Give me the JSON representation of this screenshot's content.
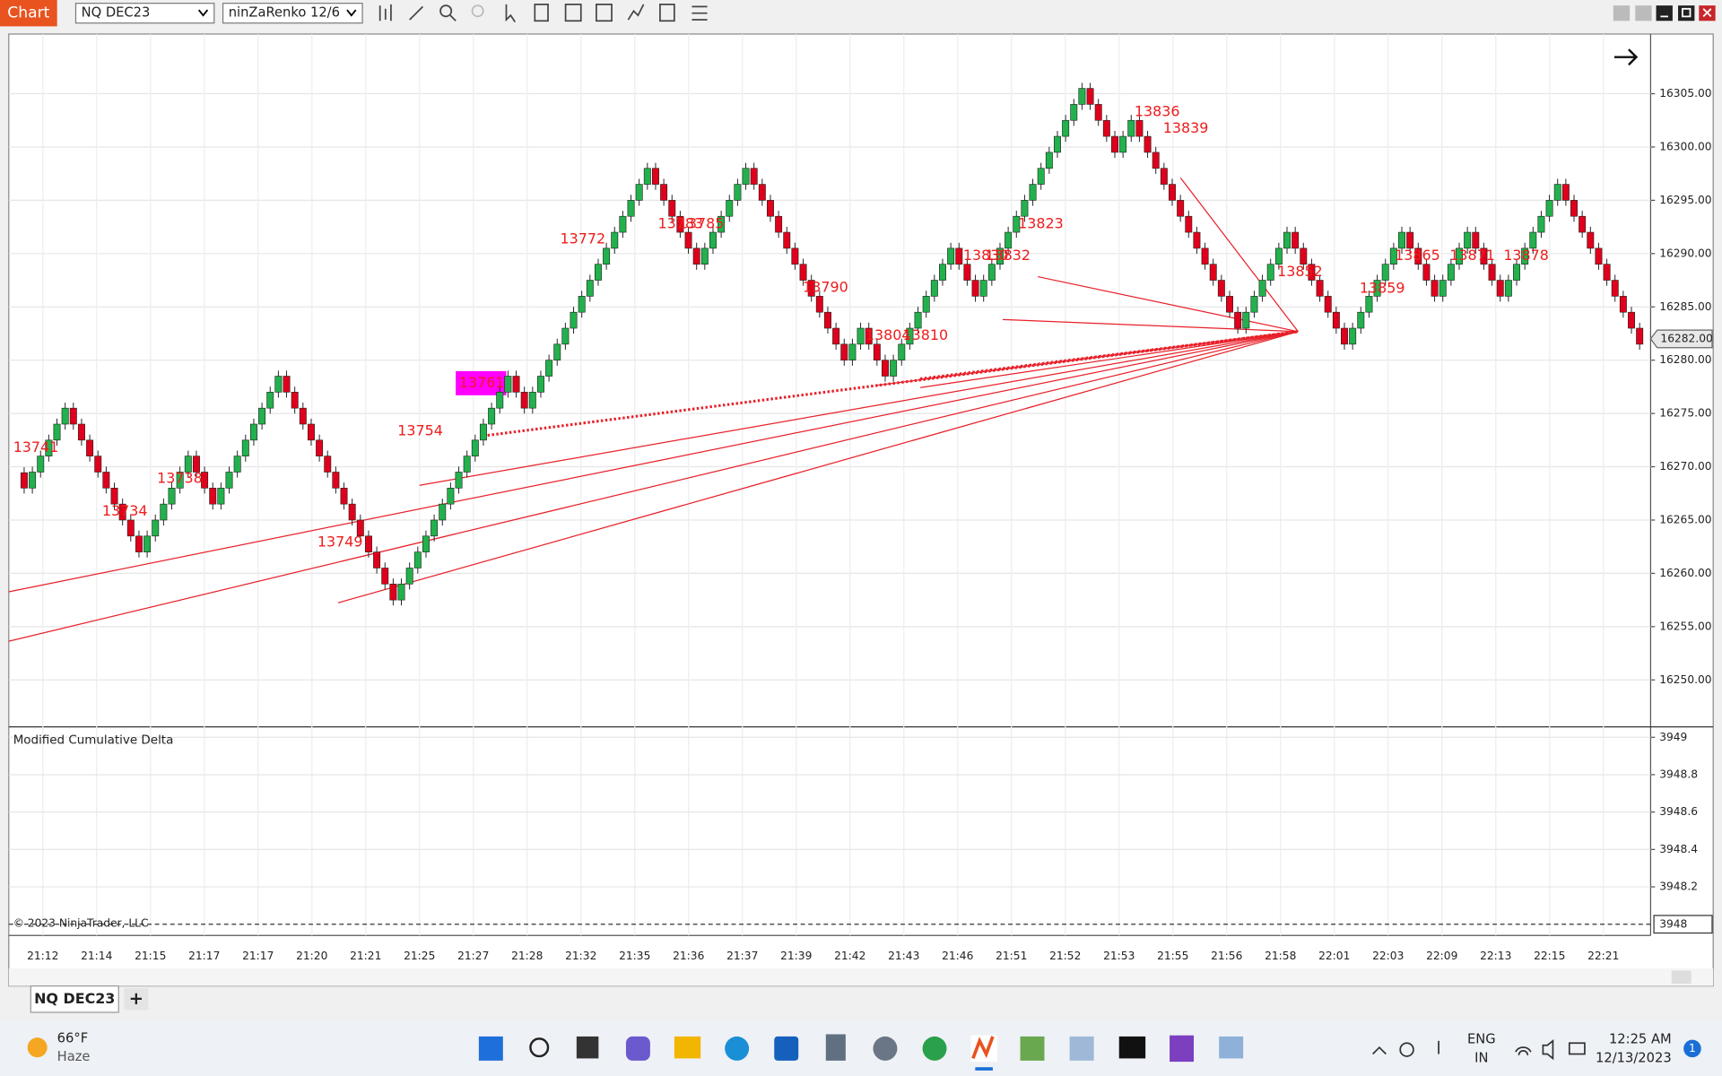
{
  "toolbar": {
    "title": "Chart",
    "instrument": "NQ DEC23",
    "bar_type": "ninZaRenko 12/6"
  },
  "chart_data": {
    "type": "renko",
    "up_color": "#22b14c",
    "down_color": "#e0001b",
    "grid": true,
    "values": [
      16268,
      16269.5,
      16271,
      16272.5,
      16274,
      16275.5,
      16274,
      16272.5,
      16271,
      16269.5,
      16268,
      16266.5,
      16265,
      16263.5,
      16262,
      16263.5,
      16265,
      16266.5,
      16268,
      16269.5,
      16271,
      16269.5,
      16268,
      16266.5,
      16268,
      16269.5,
      16271,
      16272.5,
      16274,
      16275.5,
      16277,
      16278.5,
      16277,
      16275.5,
      16274,
      16272.5,
      16271,
      16269.5,
      16268,
      16266.5,
      16265,
      16263.5,
      16262,
      16260.5,
      16259,
      16257.5,
      16259,
      16260.5,
      16262,
      16263.5,
      16265,
      16266.5,
      16268,
      16269.5,
      16271,
      16272.5,
      16274,
      16275.5,
      16277,
      16278.5,
      16277,
      16275.5,
      16277,
      16278.5,
      16280,
      16281.5,
      16283,
      16284.5,
      16286,
      16287.5,
      16289,
      16290.5,
      16292,
      16293.5,
      16295,
      16296.5,
      16298,
      16296.5,
      16295,
      16293.5,
      16292,
      16290.5,
      16289,
      16290.5,
      16292,
      16293.5,
      16295,
      16296.5,
      16298,
      16296.5,
      16295,
      16293.5,
      16292,
      16290.5,
      16289,
      16287.5,
      16286,
      16284.5,
      16283,
      16281.5,
      16280,
      16281.5,
      16283,
      16281.5,
      16280,
      16278.5,
      16280,
      16281.5,
      16283,
      16284.5,
      16286,
      16287.5,
      16289,
      16290.5,
      16289,
      16287.5,
      16286,
      16287.5,
      16289,
      16290.5,
      16292,
      16293.5,
      16295,
      16296.5,
      16298,
      16299.5,
      16301,
      16302.5,
      16304,
      16305.5,
      16304,
      16302.5,
      16301,
      16299.5,
      16301,
      16302.5,
      16301,
      16299.5,
      16298,
      16296.5,
      16295,
      16293.5,
      16292,
      16290.5,
      16289,
      16287.5,
      16286,
      16284.5,
      16283,
      16284.5,
      16286,
      16287.5,
      16289,
      16290.5,
      16292,
      16290.5,
      16289,
      16287.5,
      16286,
      16284.5,
      16283,
      16281.5,
      16283,
      16284.5,
      16286,
      16287.5,
      16289,
      16290.5,
      16292,
      16290.5,
      16289,
      16287.5,
      16286,
      16287.5,
      16289,
      16290.5,
      16292,
      16290.5,
      16289,
      16287.5,
      16286,
      16287.5,
      16289,
      16290.5,
      16292,
      16293.5,
      16295,
      16296.5,
      16295,
      16293.5,
      16292,
      16290.5,
      16289,
      16287.5,
      16286,
      16284.5,
      16283,
      16281.5
    ],
    "ylim": [
      16245.7,
      16310.6
    ],
    "yticks": [
      {
        "value": 16250,
        "label": "16250.00"
      },
      {
        "value": 16255,
        "label": "16255.00"
      },
      {
        "value": 16260,
        "label": "16260.00"
      },
      {
        "value": 16265,
        "label": "16265.00"
      },
      {
        "value": 16270,
        "label": "16270.00"
      },
      {
        "value": 16275,
        "label": "16275.00"
      },
      {
        "value": 16280,
        "label": "16280.00"
      },
      {
        "value": 16285,
        "label": "16285.00"
      },
      {
        "value": 16290,
        "label": "16290.00"
      },
      {
        "value": 16295,
        "label": "16295.00"
      },
      {
        "value": 16300,
        "label": "16300.00"
      },
      {
        "value": 16305,
        "label": "16305.00"
      }
    ],
    "last_price": {
      "value": 16282,
      "label": "16282.00"
    },
    "annotations": [
      "13741",
      "13734",
      "13738",
      "13749",
      "13754",
      "13761",
      "13772",
      "13783",
      "13785",
      "13790",
      "13804",
      "13810",
      "13830",
      "13832",
      "13823",
      "13836",
      "13839",
      "13852",
      "13859",
      "13865",
      "13871",
      "13878"
    ],
    "x_labels": [
      "21:12",
      "21:14",
      "21:15",
      "21:17",
      "21:17",
      "21:20",
      "21:21",
      "21:25",
      "21:27",
      "21:28",
      "21:32",
      "21:35",
      "21:36",
      "21:37",
      "21:39",
      "21:42",
      "21:43",
      "21:46",
      "21:51",
      "21:52",
      "21:53",
      "21:55",
      "21:56",
      "21:58",
      "22:01",
      "22:03",
      "22:09",
      "22:13",
      "22:15",
      "22:21"
    ]
  },
  "indicator": {
    "title": "Modified Cumulative Delta",
    "value": 3948,
    "ylim": [
      3947.94,
      3949.05
    ],
    "yticks": [
      3948.2,
      3948.4,
      3948.6,
      3948.8,
      3949
    ]
  },
  "copyright": "© 2023 NinjaTrader, LLC",
  "tabs": {
    "active": "NQ DEC23",
    "add": "+"
  },
  "taskbar": {
    "temperature": "66°F",
    "weather": "Haze",
    "language": "ENG",
    "region": "IN",
    "time": "12:25 AM",
    "date": "12/13/2023",
    "notifications": "1"
  }
}
